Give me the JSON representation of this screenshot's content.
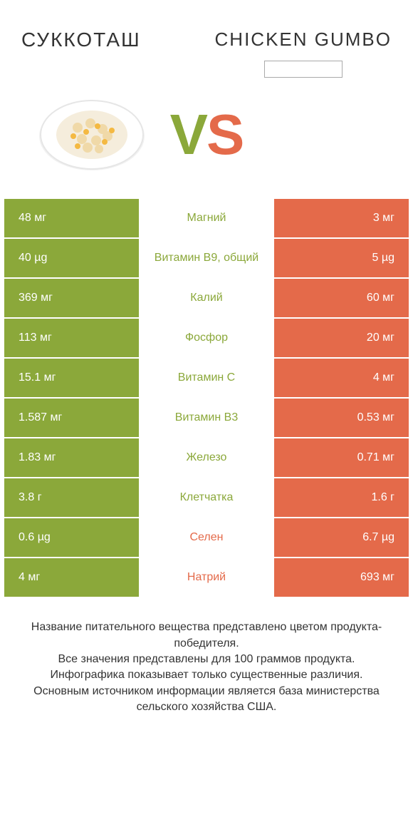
{
  "titles": {
    "left": "СУККОТАШ",
    "right": "CHICKEN GUMBO"
  },
  "vs": {
    "v": "V",
    "s": "S"
  },
  "colors": {
    "green": "#8ba83a",
    "orange": "#e46a4a",
    "background": "#ffffff",
    "text": "#333333"
  },
  "rows": [
    {
      "left": "48 мг",
      "label": "Магний",
      "right": "3 мг",
      "winner": "left"
    },
    {
      "left": "40 µg",
      "label": "Витамин B9, общий",
      "right": "5 µg",
      "winner": "left"
    },
    {
      "left": "369 мг",
      "label": "Калий",
      "right": "60 мг",
      "winner": "left"
    },
    {
      "left": "113 мг",
      "label": "Фосфор",
      "right": "20 мг",
      "winner": "left"
    },
    {
      "left": "15.1 мг",
      "label": "Витамин C",
      "right": "4 мг",
      "winner": "left"
    },
    {
      "left": "1.587 мг",
      "label": "Витамин B3",
      "right": "0.53 мг",
      "winner": "left"
    },
    {
      "left": "1.83 мг",
      "label": "Железо",
      "right": "0.71 мг",
      "winner": "left"
    },
    {
      "left": "3.8 г",
      "label": "Клетчатка",
      "right": "1.6 г",
      "winner": "left"
    },
    {
      "left": "0.6 µg",
      "label": "Селен",
      "right": "6.7 µg",
      "winner": "right"
    },
    {
      "left": "4 мг",
      "label": "Натрий",
      "right": "693 мг",
      "winner": "right"
    }
  ],
  "footer": {
    "l1": "Название питательного вещества представлено цветом продукта-победителя.",
    "l2": "Все значения представлены для 100 граммов продукта.",
    "l3": "Инфографика показывает только существенные различия.",
    "l4": "Основным источником информации является база министерства сельского хозяйства США."
  }
}
